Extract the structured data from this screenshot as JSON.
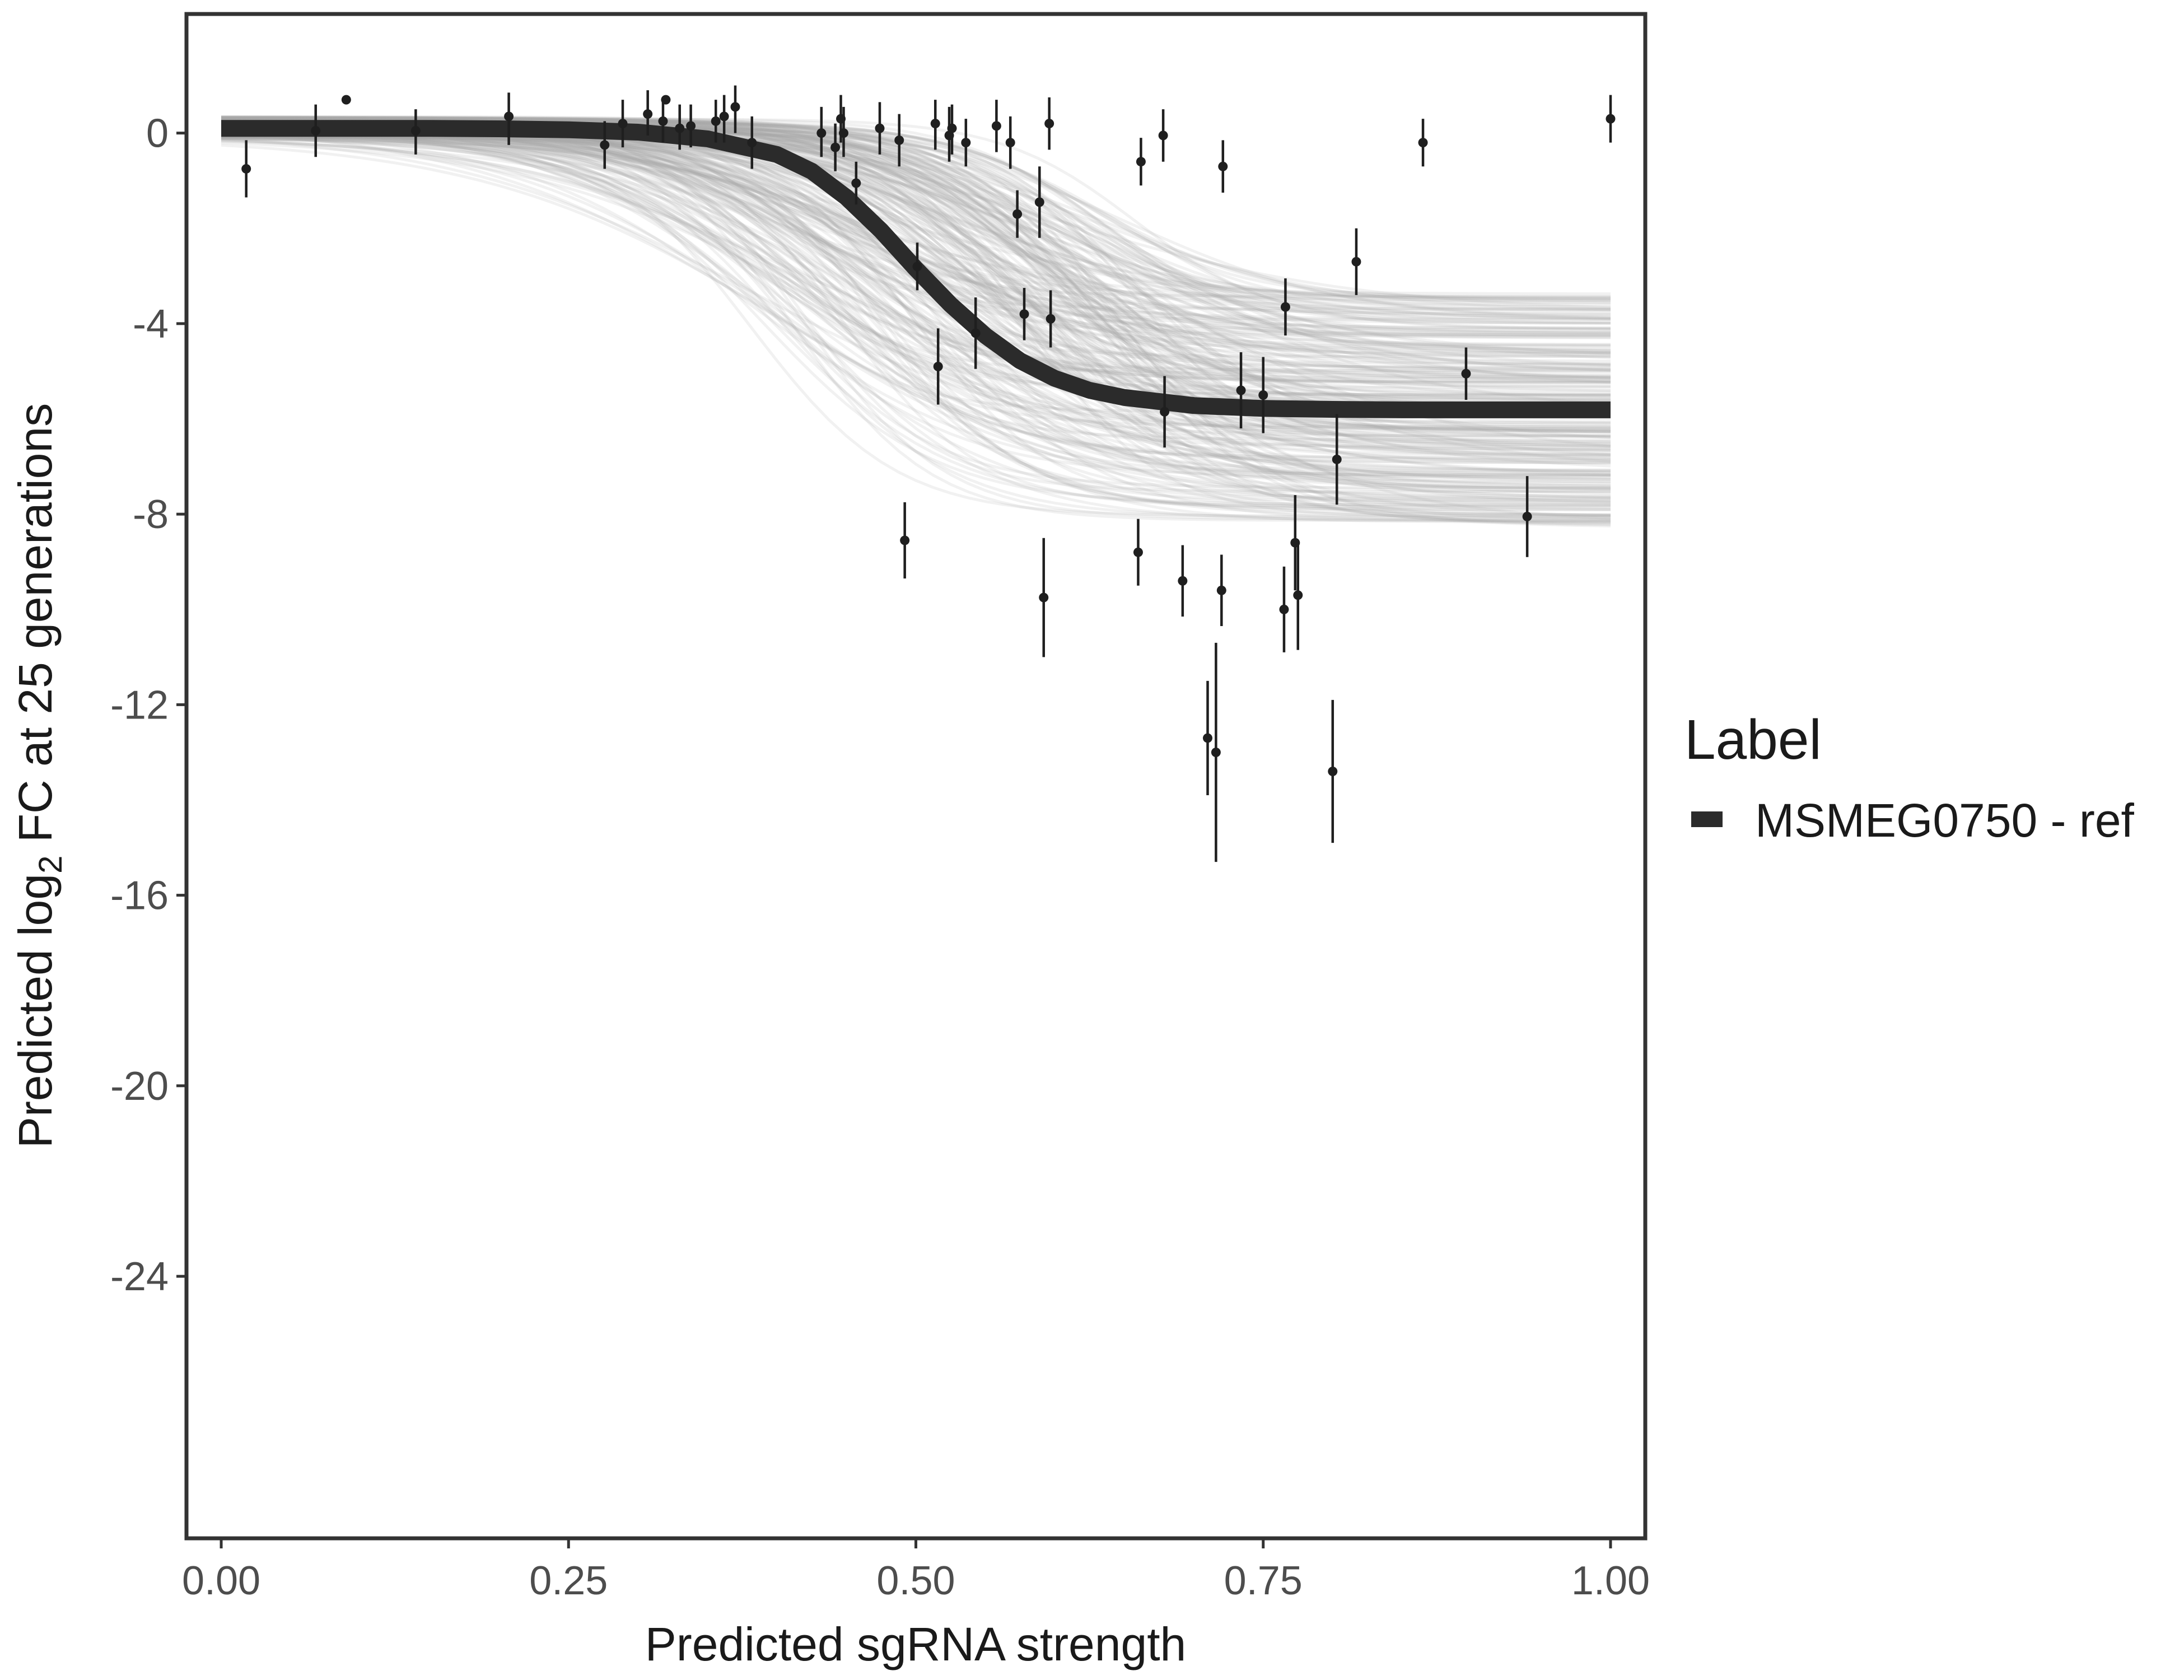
{
  "chart_data": {
    "type": "scatter",
    "title": "",
    "xlabel": "Predicted sgRNA strength",
    "ylabel": {
      "prefix": "Predicted  log",
      "subscript": "2",
      "suffix": " FC at 25 generations"
    },
    "xlim": [
      -0.025,
      1.025
    ],
    "ylim": [
      -29.5,
      2.5
    ],
    "x_ticks": [
      {
        "value": 0.0,
        "label": "0.00"
      },
      {
        "value": 0.25,
        "label": "0.25"
      },
      {
        "value": 0.5,
        "label": "0.50"
      },
      {
        "value": 0.75,
        "label": "0.75"
      },
      {
        "value": 1.0,
        "label": "1.00"
      }
    ],
    "y_ticks": [
      {
        "value": 0,
        "label": "0"
      },
      {
        "value": -4,
        "label": "-4"
      },
      {
        "value": -8,
        "label": "-8"
      },
      {
        "value": -12,
        "label": "-12"
      },
      {
        "value": -16,
        "label": "-16"
      },
      {
        "value": -20,
        "label": "-20"
      },
      {
        "value": -24,
        "label": "-24"
      }
    ],
    "grid": false,
    "legend": {
      "title": "Label",
      "placement": "right",
      "entries": [
        {
          "label": "MSMEG0750 - ref",
          "color": "#2b2b2b"
        }
      ]
    },
    "fit_curve": {
      "name": "MSMEG0750 - ref",
      "x": [
        0.0,
        0.05,
        0.1,
        0.15,
        0.2,
        0.25,
        0.3,
        0.35,
        0.4,
        0.425,
        0.45,
        0.475,
        0.5,
        0.525,
        0.55,
        0.575,
        0.6,
        0.625,
        0.65,
        0.7,
        0.75,
        0.8,
        0.85,
        0.9,
        0.95,
        1.0
      ],
      "y": [
        0.1,
        0.1,
        0.1,
        0.1,
        0.09,
        0.07,
        0.02,
        -0.12,
        -0.45,
        -0.8,
        -1.35,
        -2.05,
        -2.85,
        -3.6,
        -4.25,
        -4.78,
        -5.15,
        -5.4,
        -5.55,
        -5.72,
        -5.78,
        -5.8,
        -5.81,
        -5.81,
        -5.81,
        -5.81
      ],
      "color": "#2b2b2b"
    },
    "posterior_band": {
      "color": "#a9a9a9",
      "upper_asymptote_range": [
        -0.1,
        0.35
      ],
      "lower_asymptote_range": [
        -8.3,
        -3.3
      ],
      "midpoint_range": [
        0.38,
        0.66
      ]
    },
    "points": [
      {
        "x": 0.018,
        "y": -0.75,
        "lo": -1.35,
        "hi": -0.15
      },
      {
        "x": 0.068,
        "y": 0.05,
        "lo": -0.5,
        "hi": 0.6
      },
      {
        "x": 0.09,
        "y": 0.7,
        "lo": 0.7,
        "hi": 0.7
      },
      {
        "x": 0.14,
        "y": 0.05,
        "lo": -0.45,
        "hi": 0.5
      },
      {
        "x": 0.207,
        "y": 0.35,
        "lo": -0.25,
        "hi": 0.85
      },
      {
        "x": 0.276,
        "y": -0.25,
        "lo": -0.75,
        "hi": 0.25
      },
      {
        "x": 0.289,
        "y": 0.2,
        "lo": -0.3,
        "hi": 0.7
      },
      {
        "x": 0.307,
        "y": 0.4,
        "lo": -0.05,
        "hi": 0.9
      },
      {
        "x": 0.318,
        "y": 0.25,
        "lo": -0.2,
        "hi": 0.75
      },
      {
        "x": 0.32,
        "y": 0.7,
        "lo": 0.7,
        "hi": 0.7
      },
      {
        "x": 0.33,
        "y": 0.1,
        "lo": -0.35,
        "hi": 0.6
      },
      {
        "x": 0.338,
        "y": 0.15,
        "lo": -0.3,
        "hi": 0.6
      },
      {
        "x": 0.356,
        "y": 0.25,
        "lo": -0.2,
        "hi": 0.7
      },
      {
        "x": 0.362,
        "y": 0.35,
        "lo": -0.2,
        "hi": 0.8
      },
      {
        "x": 0.37,
        "y": 0.55,
        "lo": 0.0,
        "hi": 1.0
      },
      {
        "x": 0.382,
        "y": -0.2,
        "lo": -0.75,
        "hi": 0.35
      },
      {
        "x": 0.432,
        "y": 0.0,
        "lo": -0.5,
        "hi": 0.55
      },
      {
        "x": 0.442,
        "y": -0.3,
        "lo": -0.8,
        "hi": 0.2
      },
      {
        "x": 0.446,
        "y": 0.3,
        "lo": -0.2,
        "hi": 0.8
      },
      {
        "x": 0.448,
        "y": 0.0,
        "lo": -0.5,
        "hi": 0.55
      },
      {
        "x": 0.457,
        "y": -1.05,
        "lo": -1.5,
        "hi": -0.6
      },
      {
        "x": 0.474,
        "y": 0.1,
        "lo": -0.45,
        "hi": 0.65
      },
      {
        "x": 0.488,
        "y": -0.15,
        "lo": -0.7,
        "hi": 0.4
      },
      {
        "x": 0.492,
        "y": -8.55,
        "lo": -9.35,
        "hi": -7.75
      },
      {
        "x": 0.501,
        "y": -2.8,
        "lo": -3.3,
        "hi": -2.3
      },
      {
        "x": 0.514,
        "y": 0.2,
        "lo": -0.35,
        "hi": 0.7
      },
      {
        "x": 0.516,
        "y": -4.9,
        "lo": -5.7,
        "hi": -4.1
      },
      {
        "x": 0.524,
        "y": -0.05,
        "lo": -0.6,
        "hi": 0.55
      },
      {
        "x": 0.526,
        "y": 0.1,
        "lo": -0.45,
        "hi": 0.6
      },
      {
        "x": 0.536,
        "y": -0.2,
        "lo": -0.7,
        "hi": 0.3
      },
      {
        "x": 0.543,
        "y": -4.2,
        "lo": -4.95,
        "hi": -3.45
      },
      {
        "x": 0.558,
        "y": 0.15,
        "lo": -0.4,
        "hi": 0.7
      },
      {
        "x": 0.568,
        "y": -0.2,
        "lo": -0.75,
        "hi": 0.35
      },
      {
        "x": 0.573,
        "y": -1.7,
        "lo": -2.2,
        "hi": -1.2
      },
      {
        "x": 0.578,
        "y": -3.8,
        "lo": -4.35,
        "hi": -3.25
      },
      {
        "x": 0.589,
        "y": -1.45,
        "lo": -2.2,
        "hi": -0.7
      },
      {
        "x": 0.592,
        "y": -9.75,
        "lo": -11.0,
        "hi": -8.5
      },
      {
        "x": 0.596,
        "y": 0.2,
        "lo": -0.35,
        "hi": 0.75
      },
      {
        "x": 0.597,
        "y": -3.9,
        "lo": -4.5,
        "hi": -3.3
      },
      {
        "x": 0.66,
        "y": -8.8,
        "lo": -9.5,
        "hi": -8.1
      },
      {
        "x": 0.662,
        "y": -0.6,
        "lo": -1.1,
        "hi": -0.1
      },
      {
        "x": 0.678,
        "y": -0.05,
        "lo": -0.6,
        "hi": 0.5
      },
      {
        "x": 0.679,
        "y": -5.85,
        "lo": -6.6,
        "hi": -5.1
      },
      {
        "x": 0.692,
        "y": -9.4,
        "lo": -10.15,
        "hi": -8.65
      },
      {
        "x": 0.71,
        "y": -12.7,
        "lo": -13.9,
        "hi": -11.5
      },
      {
        "x": 0.716,
        "y": -13.0,
        "lo": -15.3,
        "hi": -10.7
      },
      {
        "x": 0.72,
        "y": -9.6,
        "lo": -10.35,
        "hi": -8.85
      },
      {
        "x": 0.721,
        "y": -0.7,
        "lo": -1.25,
        "hi": -0.15
      },
      {
        "x": 0.734,
        "y": -5.4,
        "lo": -6.2,
        "hi": -4.6
      },
      {
        "x": 0.75,
        "y": -5.5,
        "lo": -6.3,
        "hi": -4.7
      },
      {
        "x": 0.765,
        "y": -10.0,
        "lo": -10.9,
        "hi": -9.1
      },
      {
        "x": 0.766,
        "y": -3.65,
        "lo": -4.25,
        "hi": -3.05
      },
      {
        "x": 0.773,
        "y": -8.6,
        "lo": -9.6,
        "hi": -7.6
      },
      {
        "x": 0.775,
        "y": -9.7,
        "lo": -10.85,
        "hi": -8.55
      },
      {
        "x": 0.8,
        "y": -13.4,
        "lo": -14.9,
        "hi": -11.9
      },
      {
        "x": 0.803,
        "y": -6.85,
        "lo": -7.8,
        "hi": -5.9
      },
      {
        "x": 0.817,
        "y": -2.7,
        "lo": -3.4,
        "hi": -2.0
      },
      {
        "x": 0.865,
        "y": -0.2,
        "lo": -0.7,
        "hi": 0.3
      },
      {
        "x": 0.896,
        "y": -5.05,
        "lo": -5.6,
        "hi": -4.5
      },
      {
        "x": 0.94,
        "y": -8.05,
        "lo": -8.9,
        "hi": -7.2
      },
      {
        "x": 1.0,
        "y": 0.3,
        "lo": -0.2,
        "hi": 0.8
      }
    ]
  }
}
